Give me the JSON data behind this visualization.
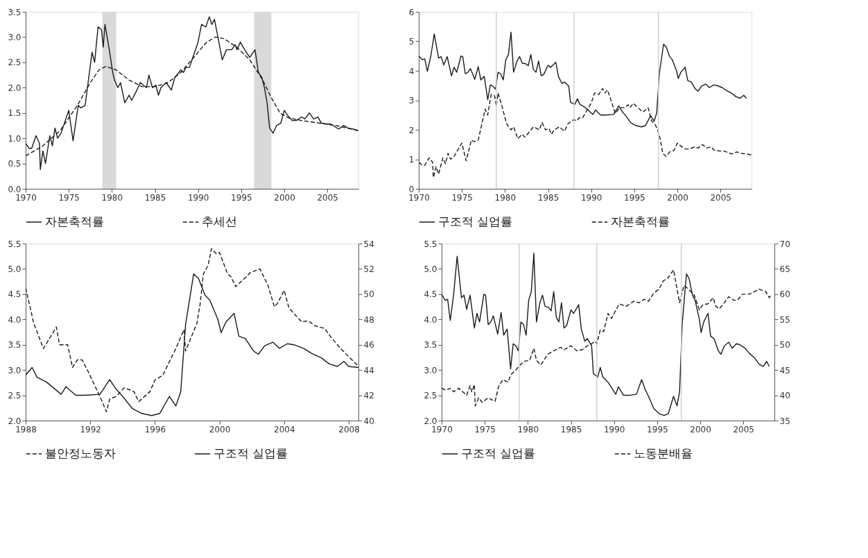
{
  "chart_data": [
    {
      "type": "line",
      "xlim": [
        1970,
        2008.6
      ],
      "xticks": [
        1970,
        1975,
        1980,
        1985,
        1990,
        1995,
        2000,
        2005
      ],
      "ylim": [
        0,
        3.5
      ],
      "yticks": [
        {
          "value": 0,
          "label": "0.0"
        },
        {
          "value": 0.5,
          "label": "0.5"
        },
        {
          "value": 1,
          "label": "1.0"
        },
        {
          "value": 1.5,
          "label": "1.5"
        },
        {
          "value": 2,
          "label": "2.0"
        },
        {
          "value": 2.5,
          "label": "2.5"
        },
        {
          "value": 3,
          "label": "3.0"
        },
        {
          "value": 3.5,
          "label": "3.5"
        }
      ],
      "legend": "bottom",
      "bands": [
        {
          "axis": "x",
          "from": 1978.9,
          "to": 1980.5,
          "color": "#d9d9d9"
        },
        {
          "axis": "x",
          "from": 1996.5,
          "to": 1998.5,
          "color": "#d9d9d9"
        }
      ],
      "series": [
        {
          "name": "자본축적률",
          "color": "#1a1a1a",
          "line_style": "solid",
          "x": [
            1970,
            1970.4,
            1970.7,
            1971.2,
            1971.6,
            1971.7,
            1972.0,
            1972.3,
            1972.8,
            1973.1,
            1973.4,
            1973.7,
            1974.1,
            1974.6,
            1975.0,
            1975.5,
            1976.1,
            1976.4,
            1976.9,
            1977.7,
            1978.0,
            1978.4,
            1978.8,
            1979.0,
            1979.2,
            1979.7,
            1980.1,
            1980.3,
            1980.7,
            1981.0,
            1981.5,
            1982.0,
            1982.3,
            1982.9,
            1983.3,
            1984.0,
            1984.3,
            1984.7,
            1985.1,
            1985.4,
            1985.7,
            1986.3,
            1986.9,
            1987.3,
            1988.0,
            1988.3,
            1988.6,
            1989.0,
            1989.4,
            1990.0,
            1990.4,
            1990.9,
            1991.3,
            1991.6,
            1991.9,
            1992.3,
            1992.8,
            1993.3,
            1993.9,
            1994.3,
            1994.5,
            1994.9,
            1995.4,
            1996.0,
            1996.6,
            1997.0,
            1997.4,
            1997.7,
            1998.0,
            1998.3,
            1998.7,
            1999.1,
            1999.6,
            2000.0,
            2000.4,
            2000.9,
            2001.4,
            2002.0,
            2002.4,
            2002.9,
            2003.4,
            2003.9,
            2004.3,
            2004.9,
            2005.4,
            2006.3,
            2006.9,
            2007.4,
            2008.0,
            2008.6
          ],
          "values": [
            0.9,
            0.8,
            0.8,
            1.05,
            0.9,
            0.38,
            0.75,
            0.5,
            1.05,
            0.85,
            1.2,
            1.0,
            1.1,
            1.35,
            1.55,
            0.95,
            1.65,
            1.6,
            1.65,
            2.7,
            2.5,
            3.2,
            3.15,
            2.8,
            3.25,
            2.75,
            2.3,
            2.15,
            2.0,
            2.1,
            1.7,
            1.85,
            1.75,
            1.95,
            2.1,
            2.0,
            2.25,
            2.0,
            2.05,
            1.85,
            2.0,
            2.1,
            1.95,
            2.2,
            2.35,
            2.3,
            2.4,
            2.4,
            2.6,
            2.9,
            3.25,
            3.2,
            3.4,
            3.25,
            3.35,
            3.0,
            2.55,
            2.75,
            2.75,
            2.85,
            2.75,
            2.9,
            2.75,
            2.6,
            2.75,
            2.3,
            2.2,
            2.0,
            1.7,
            1.2,
            1.1,
            1.25,
            1.3,
            1.55,
            1.45,
            1.35,
            1.35,
            1.42,
            1.38,
            1.5,
            1.38,
            1.42,
            1.3,
            1.28,
            1.28,
            1.18,
            1.25,
            1.2,
            1.18,
            1.15
          ]
        },
        {
          "name": "추세선",
          "color": "#1a1a1a",
          "line_style": "dashed",
          "x": [
            1970,
            1972,
            1974,
            1976,
            1977.5,
            1978.5,
            1979.3,
            1980.5,
            1982,
            1983.5,
            1985,
            1986.5,
            1988,
            1989.5,
            1991,
            1992,
            1993,
            1994.5,
            1996,
            1997.5,
            1998.5,
            1999.5,
            2000.5,
            2002,
            2004,
            2006,
            2008.6
          ],
          "values": [
            0.65,
            0.85,
            1.15,
            1.65,
            2.1,
            2.35,
            2.42,
            2.35,
            2.15,
            2.02,
            2.02,
            2.1,
            2.3,
            2.6,
            2.9,
            3.0,
            2.97,
            2.8,
            2.55,
            2.15,
            1.8,
            1.5,
            1.4,
            1.35,
            1.3,
            1.25,
            1.15
          ]
        }
      ]
    },
    {
      "type": "line",
      "xlim": [
        1970,
        2008.6
      ],
      "xticks": [
        1970,
        1975,
        1980,
        1985,
        1990,
        1995,
        2000,
        2005
      ],
      "ylim": [
        0,
        6
      ],
      "yticks": [
        0,
        1,
        2,
        3,
        4,
        5,
        6
      ],
      "legend": "bottom",
      "ref_lines": [
        {
          "axis": "x",
          "value": 1979,
          "color": "#d0d0d0"
        },
        {
          "axis": "x",
          "value": 1988,
          "color": "#d0d0d0"
        },
        {
          "axis": "x",
          "value": 1997.8,
          "color": "#d0d0d0"
        }
      ],
      "series": [
        {
          "name": "구조적 실업률",
          "color": "#1a1a1a",
          "line_style": "solid",
          "x": [
            1970.0,
            1970.4,
            1970.7,
            1971.0,
            1971.4,
            1971.8,
            1972.3,
            1972.6,
            1972.9,
            1973.3,
            1973.8,
            1974.1,
            1974.4,
            1974.9,
            1975.1,
            1975.4,
            1975.7,
            1976.0,
            1976.5,
            1976.9,
            1977.2,
            1977.6,
            1978.0,
            1978.3,
            1978.6,
            1978.9,
            1979.2,
            1979.5,
            1979.8,
            1980.1,
            1980.4,
            1980.7,
            1981.0,
            1981.4,
            1981.7,
            1982.0,
            1982.4,
            1982.7,
            1983.0,
            1983.3,
            1983.6,
            1983.9,
            1984.2,
            1984.5,
            1985.0,
            1985.3,
            1985.9,
            1986.2,
            1986.6,
            1986.9,
            1987.4,
            1987.6,
            1988.1,
            1988.4,
            1988.7,
            1989.3,
            1990.2,
            1990.5,
            1991.1,
            1991.7,
            1992.6,
            1993.2,
            1993.6,
            1994.0,
            1994.6,
            1995.2,
            1995.8,
            1996.3,
            1996.9,
            1997.3,
            1997.6,
            1997.9,
            1998.4,
            1998.7,
            1999.1,
            1999.4,
            1999.9,
            2000.1,
            2000.4,
            2000.9,
            2001.2,
            2001.6,
            2002.1,
            2002.4,
            2002.8,
            2003.3,
            2003.7,
            2004.2,
            2004.6,
            2005.2,
            2005.7,
            2006.3,
            2006.8,
            2007.3,
            2007.7,
            2008.0
          ],
          "values": [
            4.5,
            4.38,
            4.4,
            3.98,
            4.5,
            5.25,
            4.43,
            4.48,
            4.2,
            4.48,
            3.83,
            4.12,
            3.95,
            4.5,
            4.48,
            3.9,
            3.95,
            4.07,
            3.71,
            4.14,
            3.69,
            3.81,
            3.02,
            3.52,
            3.48,
            3.38,
            3.95,
            3.9,
            3.69,
            4.38,
            4.55,
            5.31,
            3.95,
            4.33,
            4.48,
            4.26,
            4.24,
            4.17,
            4.55,
            4.05,
            3.95,
            4.33,
            3.83,
            3.88,
            4.19,
            4.12,
            4.29,
            3.81,
            3.57,
            3.62,
            3.48,
            2.93,
            2.86,
            3.05,
            2.86,
            2.76,
            2.52,
            2.67,
            2.5,
            2.5,
            2.52,
            2.81,
            2.62,
            2.48,
            2.24,
            2.14,
            2.1,
            2.14,
            2.48,
            2.29,
            2.57,
            3.9,
            4.9,
            4.81,
            4.48,
            4.38,
            4.0,
            3.74,
            3.95,
            4.12,
            3.67,
            3.62,
            3.38,
            3.31,
            3.48,
            3.55,
            3.43,
            3.52,
            3.5,
            3.43,
            3.33,
            3.24,
            3.12,
            3.07,
            3.17,
            3.07
          ]
        },
        {
          "name": "자본축적률",
          "color": "#1a1a1a",
          "line_style": "dashed",
          "x": [
            1970,
            1970.4,
            1970.7,
            1971.2,
            1971.6,
            1971.7,
            1972.0,
            1972.3,
            1972.8,
            1973.1,
            1973.4,
            1973.7,
            1974.1,
            1974.6,
            1975.0,
            1975.5,
            1976.1,
            1976.4,
            1976.9,
            1977.7,
            1978.0,
            1978.4,
            1978.8,
            1979.0,
            1979.2,
            1979.7,
            1980.1,
            1980.3,
            1980.7,
            1981.0,
            1981.5,
            1982.0,
            1982.3,
            1982.9,
            1983.3,
            1984.0,
            1984.3,
            1984.7,
            1985.1,
            1985.4,
            1985.7,
            1986.3,
            1986.9,
            1987.3,
            1988.0,
            1988.3,
            1988.6,
            1989.0,
            1989.4,
            1990.0,
            1990.4,
            1990.9,
            1991.3,
            1991.6,
            1991.9,
            1992.3,
            1992.8,
            1993.3,
            1993.9,
            1994.3,
            1994.5,
            1994.9,
            1995.4,
            1996.0,
            1996.6,
            1997.0,
            1997.4,
            1997.7,
            1998.0,
            1998.3,
            1998.7,
            1999.1,
            1999.6,
            2000.0,
            2000.4,
            2000.9,
            2001.4,
            2002.0,
            2002.4,
            2002.9,
            2003.4,
            2003.9,
            2004.3,
            2004.9,
            2005.4,
            2006.3,
            2006.9,
            2007.4,
            2008.0,
            2008.6
          ],
          "values": [
            0.9,
            0.8,
            0.8,
            1.05,
            0.9,
            0.38,
            0.75,
            0.5,
            1.05,
            0.85,
            1.2,
            1.0,
            1.1,
            1.35,
            1.55,
            0.95,
            1.65,
            1.6,
            1.65,
            2.7,
            2.5,
            3.2,
            3.15,
            2.8,
            3.25,
            2.75,
            2.3,
            2.15,
            2.0,
            2.1,
            1.7,
            1.85,
            1.75,
            1.95,
            2.1,
            2.0,
            2.25,
            2.0,
            2.05,
            1.85,
            2.0,
            2.1,
            1.95,
            2.2,
            2.35,
            2.3,
            2.4,
            2.4,
            2.6,
            2.9,
            3.25,
            3.2,
            3.4,
            3.25,
            3.35,
            3.0,
            2.55,
            2.75,
            2.75,
            2.85,
            2.75,
            2.9,
            2.75,
            2.6,
            2.75,
            2.3,
            2.2,
            2.0,
            1.7,
            1.2,
            1.1,
            1.25,
            1.3,
            1.55,
            1.45,
            1.35,
            1.35,
            1.42,
            1.38,
            1.5,
            1.38,
            1.42,
            1.3,
            1.28,
            1.28,
            1.18,
            1.25,
            1.2,
            1.18,
            1.15
          ]
        }
      ]
    },
    {
      "type": "line",
      "xlim": [
        1988,
        2008.6
      ],
      "xticks": [
        1988,
        1992,
        1996,
        2000,
        2004,
        2008
      ],
      "ylim": [
        2,
        5.5
      ],
      "yticks": [
        {
          "value": 2,
          "label": "2.0"
        },
        {
          "value": 2.5,
          "label": "2.5"
        },
        {
          "value": 3,
          "label": "3.0"
        },
        {
          "value": 3.5,
          "label": "3.5"
        },
        {
          "value": 4,
          "label": "4.0"
        },
        {
          "value": 4.5,
          "label": "4.5"
        },
        {
          "value": 5,
          "label": "5.0"
        },
        {
          "value": 5.5,
          "label": "5.5"
        }
      ],
      "y2lim": [
        40,
        54
      ],
      "y2ticks": [
        40,
        42,
        44,
        46,
        48,
        50,
        52,
        54
      ],
      "legend": "bottom",
      "series": [
        {
          "name": "불안정노동자",
          "color": "#1a1a1a",
          "line_style": "dashed",
          "axis": "y2",
          "x": [
            1988.0,
            1988.2,
            1988.5,
            1989.1,
            1989.9,
            1990.1,
            1990.6,
            1990.9,
            1991.2,
            1991.5,
            1991.9,
            1992.6,
            1993.0,
            1993.2,
            1993.6,
            1994.1,
            1994.7,
            1995.0,
            1995.7,
            1996.0,
            1996.5,
            1996.8,
            1997.3,
            1997.8,
            1997.9,
            1998.6,
            1998.8,
            1999.0,
            1999.3,
            1999.5,
            1999.8,
            2000.0,
            2000.5,
            2000.7,
            2001.0,
            2001.6,
            2001.9,
            2002.5,
            2003.0,
            2003.4,
            2003.6,
            2004.0,
            2004.3,
            2004.8,
            2005.1,
            2005.5,
            2005.9,
            2006.5,
            2006.9,
            2007.5,
            2008.2,
            2008.6
          ],
          "values": [
            50.5,
            49.4,
            47.7,
            45.7,
            47.4,
            46.0,
            46.0,
            44.2,
            44.8,
            44.8,
            43.8,
            41.9,
            40.7,
            41.7,
            41.9,
            42.6,
            42.3,
            41.5,
            42.3,
            43.2,
            43.6,
            44.4,
            45.7,
            47.2,
            45.5,
            47.7,
            49.2,
            51.6,
            52.3,
            53.6,
            53.2,
            53.3,
            51.6,
            51.4,
            50.6,
            51.3,
            51.7,
            52.0,
            50.7,
            49.0,
            49.3,
            50.3,
            48.9,
            48.2,
            47.8,
            47.9,
            47.5,
            47.3,
            46.6,
            45.7,
            44.8,
            44.3
          ]
        },
        {
          "name": "구조적 실업률",
          "color": "#1a1a1a",
          "line_style": "solid",
          "x": [
            1988.0,
            1988.4,
            1988.7,
            1989.3,
            1990.2,
            1990.5,
            1991.1,
            1991.7,
            1992.6,
            1993.2,
            1993.6,
            1994.0,
            1994.6,
            1995.2,
            1995.8,
            1996.3,
            1996.9,
            1997.3,
            1997.6,
            1997.9,
            1998.4,
            1998.7,
            1999.1,
            1999.4,
            1999.9,
            2000.1,
            2000.4,
            2000.9,
            2001.2,
            2001.6,
            2002.1,
            2002.4,
            2002.8,
            2003.3,
            2003.7,
            2004.2,
            2004.6,
            2005.2,
            2005.7,
            2006.3,
            2006.8,
            2007.3,
            2007.7,
            2008.0,
            2008.6
          ],
          "values": [
            2.9,
            3.05,
            2.86,
            2.76,
            2.52,
            2.67,
            2.5,
            2.5,
            2.52,
            2.81,
            2.62,
            2.48,
            2.24,
            2.14,
            2.1,
            2.14,
            2.48,
            2.29,
            2.57,
            3.9,
            4.9,
            4.81,
            4.48,
            4.38,
            4.0,
            3.74,
            3.95,
            4.12,
            3.67,
            3.62,
            3.38,
            3.31,
            3.48,
            3.55,
            3.43,
            3.52,
            3.5,
            3.43,
            3.33,
            3.24,
            3.12,
            3.07,
            3.17,
            3.07,
            3.05
          ]
        }
      ]
    },
    {
      "type": "line",
      "xlim": [
        1970,
        2008.6
      ],
      "xticks": [
        1970,
        1975,
        1980,
        1985,
        1990,
        1995,
        2000,
        2005
      ],
      "ylim": [
        2,
        5.5
      ],
      "yticks": [
        {
          "value": 2,
          "label": "2.0"
        },
        {
          "value": 2.5,
          "label": "2.5"
        },
        {
          "value": 3,
          "label": "3.0"
        },
        {
          "value": 3.5,
          "label": "3.5"
        },
        {
          "value": 4,
          "label": "4.0"
        },
        {
          "value": 4.5,
          "label": "4.5"
        },
        {
          "value": 5,
          "label": "5.0"
        },
        {
          "value": 5.5,
          "label": "5.5"
        }
      ],
      "y2lim": [
        35,
        70
      ],
      "y2ticks": [
        35,
        40,
        45,
        50,
        55,
        60,
        65,
        70
      ],
      "legend": "bottom",
      "ref_lines": [
        {
          "axis": "x",
          "value": 1979,
          "color": "#d0d0d0"
        },
        {
          "axis": "x",
          "value": 1988,
          "color": "#d0d0d0"
        },
        {
          "axis": "x",
          "value": 1997.8,
          "color": "#d0d0d0"
        }
      ],
      "series": [
        {
          "name": "구조적 실업률",
          "color": "#1a1a1a",
          "line_style": "solid",
          "x": [
            1970.0,
            1970.4,
            1970.7,
            1971.0,
            1971.4,
            1971.8,
            1972.3,
            1972.6,
            1972.9,
            1973.3,
            1973.8,
            1974.1,
            1974.4,
            1974.9,
            1975.1,
            1975.4,
            1975.7,
            1976.0,
            1976.5,
            1976.9,
            1977.2,
            1977.6,
            1978.0,
            1978.3,
            1978.6,
            1978.9,
            1979.2,
            1979.5,
            1979.8,
            1980.1,
            1980.4,
            1980.7,
            1981.0,
            1981.4,
            1981.7,
            1982.0,
            1982.4,
            1982.7,
            1983.0,
            1983.3,
            1983.6,
            1983.9,
            1984.2,
            1984.5,
            1985.0,
            1985.3,
            1985.9,
            1986.2,
            1986.6,
            1986.9,
            1987.4,
            1987.6,
            1988.1,
            1988.4,
            1988.7,
            1989.3,
            1990.2,
            1990.5,
            1991.1,
            1991.7,
            1992.6,
            1993.2,
            1993.6,
            1994.0,
            1994.6,
            1995.2,
            1995.8,
            1996.3,
            1996.9,
            1997.3,
            1997.6,
            1997.9,
            1998.4,
            1998.7,
            1999.1,
            1999.4,
            1999.9,
            2000.1,
            2000.4,
            2000.9,
            2001.2,
            2001.6,
            2002.1,
            2002.4,
            2002.8,
            2003.3,
            2003.7,
            2004.2,
            2004.6,
            2005.2,
            2005.7,
            2006.3,
            2006.8,
            2007.3,
            2007.7,
            2008.0
          ],
          "values": [
            4.5,
            4.38,
            4.4,
            3.98,
            4.5,
            5.25,
            4.43,
            4.48,
            4.2,
            4.48,
            3.83,
            4.12,
            3.95,
            4.5,
            4.48,
            3.9,
            3.95,
            4.07,
            3.71,
            4.14,
            3.69,
            3.81,
            3.02,
            3.52,
            3.48,
            3.38,
            3.95,
            3.9,
            3.69,
            4.38,
            4.55,
            5.31,
            3.95,
            4.33,
            4.48,
            4.26,
            4.24,
            4.17,
            4.55,
            4.05,
            3.95,
            4.33,
            3.83,
            3.88,
            4.19,
            4.12,
            4.29,
            3.81,
            3.57,
            3.62,
            3.48,
            2.93,
            2.86,
            3.05,
            2.86,
            2.76,
            2.52,
            2.67,
            2.5,
            2.5,
            2.52,
            2.81,
            2.62,
            2.48,
            2.24,
            2.14,
            2.1,
            2.14,
            2.48,
            2.29,
            2.57,
            3.9,
            4.9,
            4.81,
            4.48,
            4.38,
            4.0,
            3.74,
            3.95,
            4.12,
            3.67,
            3.62,
            3.38,
            3.31,
            3.48,
            3.55,
            3.43,
            3.52,
            3.5,
            3.43,
            3.33,
            3.24,
            3.12,
            3.07,
            3.17,
            3.07
          ]
        },
        {
          "name": "노동분배율",
          "color": "#1a1a1a",
          "line_style": "dashed",
          "axis": "y2",
          "x": [
            1970,
            1970.5,
            1971.0,
            1971.4,
            1972.0,
            1972.9,
            1973.3,
            1973.5,
            1973.8,
            1973.9,
            1974.3,
            1974.7,
            1975.4,
            1976.2,
            1976.6,
            1977.1,
            1977.7,
            1978.0,
            1978.7,
            1979.5,
            1980.2,
            1980.7,
            1981.0,
            1981.5,
            1982.3,
            1983.0,
            1983.8,
            1984.2,
            1985.0,
            1985.7,
            1986.3,
            1986.9,
            1987.4,
            1987.8,
            1988.0,
            1988.4,
            1988.8,
            1989.3,
            1989.7,
            1990.6,
            1991.4,
            1992.3,
            1992.9,
            1993.5,
            1994.0,
            1994.6,
            1995.2,
            1995.7,
            1996.3,
            1996.9,
            1997.6,
            1998.1,
            1998.5,
            1999.3,
            1999.9,
            2000.3,
            2000.9,
            2001.5,
            2001.8,
            2002.2,
            2002.7,
            2003.3,
            2003.9,
            2004.3,
            2004.9,
            2005.7,
            2006.3,
            2006.8,
            2007.6,
            2008.0,
            2008.3
          ],
          "values": [
            41.4,
            41.0,
            41.4,
            40.7,
            41.4,
            40.0,
            41.9,
            40.7,
            42.1,
            37.9,
            39.5,
            38.6,
            39.5,
            38.8,
            41.7,
            43.1,
            42.6,
            44.0,
            45.2,
            46.7,
            46.9,
            49.3,
            46.9,
            46.0,
            48.1,
            48.8,
            49.5,
            49.0,
            49.8,
            48.8,
            49.0,
            49.8,
            50.2,
            50.7,
            50.2,
            52.9,
            52.6,
            56.2,
            55.2,
            58.1,
            57.6,
            58.6,
            58.3,
            59.0,
            58.6,
            60.2,
            61.0,
            62.6,
            63.3,
            64.8,
            58.3,
            61.7,
            61.2,
            59.8,
            56.9,
            57.9,
            58.1,
            59.3,
            57.6,
            57.1,
            58.1,
            59.5,
            58.8,
            58.8,
            60.0,
            60.0,
            60.5,
            61.0,
            60.5,
            59.3,
            60.0
          ]
        }
      ]
    }
  ]
}
